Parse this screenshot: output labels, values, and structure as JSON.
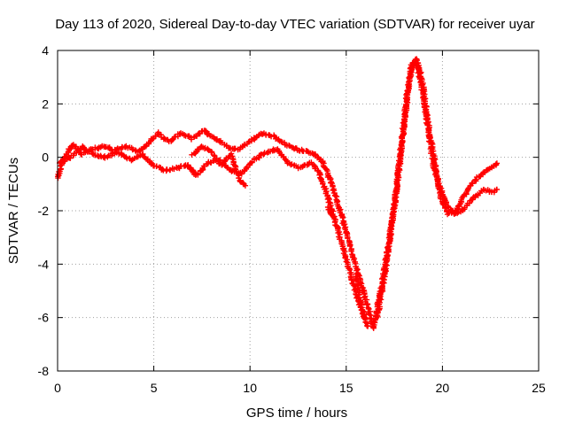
{
  "chart_data": {
    "type": "scatter",
    "title": "Day 113 of 2020, Sidereal Day-to-day VTEC variation (SDTVAR) for receiver uyar",
    "xlabel": "GPS time / hours",
    "ylabel": "SDTVAR / TECUs",
    "xlim": [
      0,
      25
    ],
    "ylim": [
      -8,
      4
    ],
    "xticks": [
      0,
      5,
      10,
      15,
      20,
      25
    ],
    "yticks": [
      -8,
      -6,
      -4,
      -2,
      0,
      2,
      4
    ],
    "xtick_labels": [
      "0",
      "5",
      "10",
      "15",
      "20",
      "25"
    ],
    "ytick_labels": [
      "-8",
      "-6",
      "-4",
      "-2",
      "0",
      "2",
      "4"
    ],
    "grid": true,
    "marker": "plus",
    "series": [
      {
        "name": "SDTVAR",
        "color": "#ff0000",
        "tracks": [
          [
            [
              0.0,
              -0.8
            ],
            [
              0.2,
              -0.3
            ],
            [
              0.5,
              0.2
            ],
            [
              0.8,
              0.5
            ],
            [
              1.2,
              0.1
            ],
            [
              1.8,
              0.3
            ],
            [
              2.4,
              0.4
            ],
            [
              3.0,
              0.3
            ],
            [
              3.6,
              0.4
            ],
            [
              4.2,
              0.2
            ],
            [
              4.8,
              0.6
            ],
            [
              5.2,
              0.9
            ],
            [
              5.8,
              0.6
            ],
            [
              6.4,
              0.9
            ],
            [
              7.0,
              0.7
            ],
            [
              7.6,
              1.0
            ],
            [
              8.2,
              0.7
            ],
            [
              8.8,
              0.4
            ],
            [
              9.4,
              0.3
            ],
            [
              10.0,
              0.6
            ],
            [
              10.6,
              0.9
            ],
            [
              11.2,
              0.8
            ],
            [
              11.8,
              0.5
            ],
            [
              12.4,
              0.3
            ],
            [
              13.0,
              0.2
            ],
            [
              13.4,
              0.1
            ],
            [
              13.8,
              -0.2
            ],
            [
              14.2,
              -0.9
            ],
            [
              14.6,
              -1.8
            ],
            [
              15.0,
              -2.8
            ],
            [
              15.4,
              -3.8
            ],
            [
              15.8,
              -4.8
            ],
            [
              16.2,
              -5.8
            ],
            [
              16.4,
              -6.4
            ]
          ],
          [
            [
              16.4,
              -6.4
            ],
            [
              16.8,
              -5.0
            ],
            [
              17.2,
              -3.3
            ],
            [
              17.6,
              -1.3
            ],
            [
              18.0,
              1.2
            ],
            [
              18.3,
              3.0
            ],
            [
              18.6,
              3.7
            ],
            [
              18.9,
              3.1
            ],
            [
              19.2,
              1.5
            ],
            [
              19.5,
              0.2
            ],
            [
              19.8,
              -1.0
            ],
            [
              20.2,
              -1.8
            ],
            [
              20.6,
              -2.1
            ],
            [
              21.0,
              -2.0
            ],
            [
              21.4,
              -1.7
            ],
            [
              21.8,
              -1.4
            ],
            [
              22.2,
              -1.2
            ],
            [
              22.6,
              -1.3
            ],
            [
              22.9,
              -1.2
            ]
          ]
        ],
        "secondary": [
          [
            [
              0.1,
              -0.2
            ],
            [
              0.7,
              0.0
            ],
            [
              1.3,
              0.4
            ],
            [
              1.9,
              0.1
            ],
            [
              2.5,
              0.0
            ],
            [
              3.1,
              0.2
            ],
            [
              3.8,
              -0.1
            ],
            [
              4.4,
              0.1
            ],
            [
              5.0,
              -0.3
            ],
            [
              5.6,
              -0.5
            ],
            [
              6.2,
              -0.4
            ],
            [
              6.8,
              -0.3
            ],
            [
              7.2,
              -0.7
            ],
            [
              7.8,
              -0.2
            ],
            [
              8.4,
              -0.1
            ],
            [
              9.0,
              -0.5
            ],
            [
              9.6,
              -0.6
            ],
            [
              10.2,
              -0.1
            ],
            [
              10.8,
              0.2
            ],
            [
              11.4,
              0.3
            ],
            [
              12.0,
              -0.2
            ],
            [
              12.6,
              -0.4
            ],
            [
              13.2,
              -0.2
            ],
            [
              13.6,
              -0.6
            ],
            [
              14.0,
              -1.4
            ],
            [
              14.4,
              -2.3
            ],
            [
              14.8,
              -3.3
            ],
            [
              15.2,
              -4.3
            ],
            [
              15.6,
              -5.3
            ],
            [
              16.0,
              -6.1
            ]
          ],
          [
            [
              16.6,
              -6.0
            ],
            [
              17.0,
              -4.4
            ],
            [
              17.4,
              -2.4
            ],
            [
              17.8,
              0.0
            ],
            [
              18.1,
              2.0
            ],
            [
              18.4,
              3.5
            ],
            [
              18.7,
              3.4
            ],
            [
              19.0,
              2.3
            ],
            [
              19.3,
              0.8
            ],
            [
              19.6,
              -0.5
            ],
            [
              19.9,
              -1.5
            ],
            [
              20.3,
              -2.1
            ],
            [
              20.7,
              -2.0
            ],
            [
              21.1,
              -1.5
            ],
            [
              21.5,
              -1.0
            ],
            [
              21.9,
              -0.7
            ],
            [
              22.3,
              -0.5
            ],
            [
              22.7,
              -0.3
            ],
            [
              22.9,
              -0.2
            ]
          ],
          [
            [
              7.0,
              0.1
            ],
            [
              7.5,
              0.4
            ],
            [
              8.0,
              0.2
            ],
            [
              8.5,
              -0.3
            ],
            [
              9.0,
              0.1
            ],
            [
              9.5,
              -0.9
            ],
            [
              9.8,
              -1.1
            ]
          ],
          [
            [
              14.0,
              -1.9
            ],
            [
              14.3,
              -2.2
            ]
          ],
          [
            [
              15.5,
              -4.4
            ],
            [
              15.8,
              -5.6
            ],
            [
              16.1,
              -6.4
            ]
          ]
        ]
      }
    ]
  }
}
